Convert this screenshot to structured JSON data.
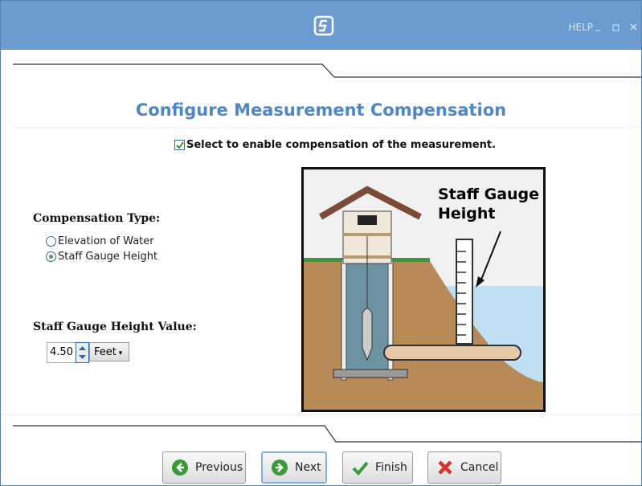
{
  "window": {
    "help": "HELP"
  },
  "header": {
    "title": "Configure Measurement Compensation",
    "enable_checkbox": "Select to enable compensation of the measurement."
  },
  "compensation": {
    "label": "Compensation Type:",
    "options": [
      "Elevation of Water",
      "Staff Gauge Height"
    ]
  },
  "value_field": {
    "label": "Staff Gauge Height Value:",
    "value": "4.50",
    "unit": "Feet"
  },
  "illustration": {
    "label_lines": [
      "Staff Gauge",
      "Height"
    ]
  },
  "buttons": [
    "Previous",
    "Next",
    "Finish",
    "Cancel"
  ]
}
